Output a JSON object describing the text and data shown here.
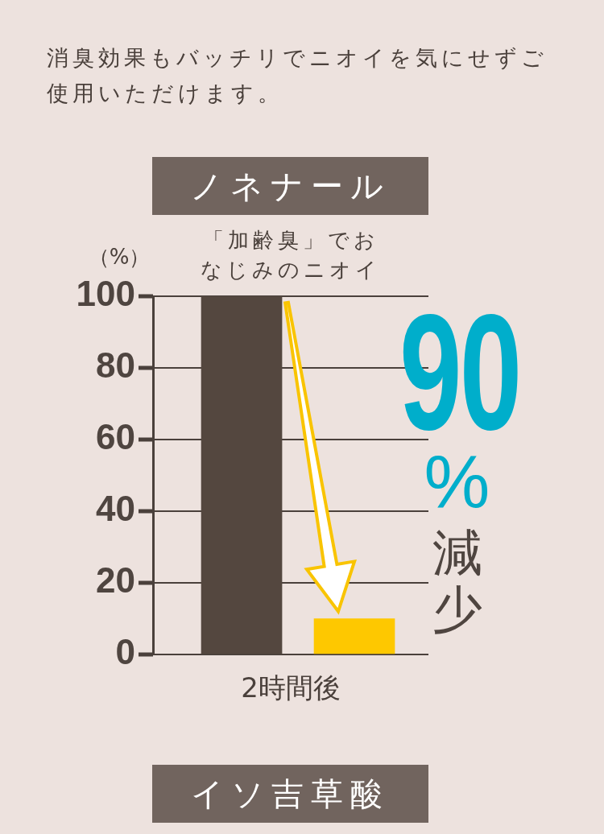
{
  "chart_data": {
    "type": "bar",
    "title": "ノネナール",
    "subtitle": "「加齢臭」でおなじみのニオイ",
    "xlabel": "2時間後",
    "ylabel": "（%）",
    "categories": [
      null,
      null
    ],
    "values": [
      100,
      10
    ],
    "colors": [
      "#54473f",
      "#fec800"
    ],
    "ylim": [
      0,
      100
    ],
    "yticks": [
      0,
      20,
      40,
      60,
      80,
      100
    ],
    "grid": "y",
    "annotations": [
      "消臭効果もバッチリでニオイを気にせずご使用いただけます。",
      "90%減少",
      "イソ吉草酸"
    ]
  }
}
